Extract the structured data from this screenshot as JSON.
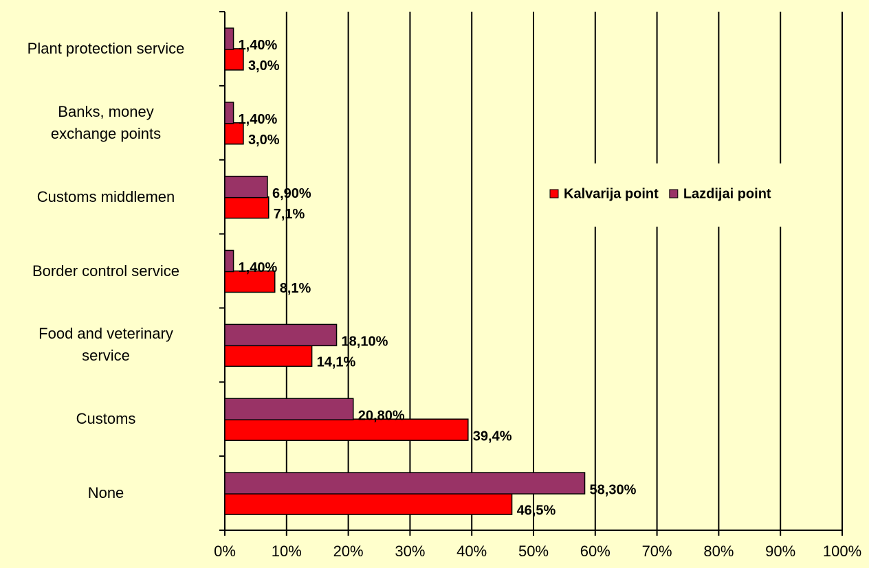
{
  "chart_data": {
    "type": "bar",
    "orientation": "horizontal",
    "categories": [
      "Plant protection service",
      "Banks, money\nexchange points",
      "Customs middlemen",
      "Border control service",
      "Food and veterinary\nservice",
      "Customs",
      "None"
    ],
    "series": [
      {
        "name": "Kalvarija point",
        "color": "#ff0000",
        "values": [
          3.0,
          3.0,
          7.1,
          8.1,
          14.1,
          39.4,
          46.5
        ],
        "value_labels": [
          "3,0%",
          "3,0%",
          "7,1%",
          "8,1%",
          "14,1%",
          "39,4%",
          "46,5%"
        ]
      },
      {
        "name": "Lazdijai point",
        "color": "#993366",
        "values": [
          1.4,
          1.4,
          6.9,
          1.4,
          18.1,
          20.8,
          58.3
        ],
        "value_labels": [
          "1,40%",
          "1,40%",
          "6,90%",
          "1,40%",
          "18,10%",
          "20,80%",
          "58,30%"
        ]
      }
    ],
    "xlim": [
      0,
      100
    ],
    "xticks": [
      {
        "value": 0,
        "label": "0%"
      },
      {
        "value": 10,
        "label": "10%"
      },
      {
        "value": 20,
        "label": "20%"
      },
      {
        "value": 30,
        "label": "30%"
      },
      {
        "value": 40,
        "label": "40%"
      },
      {
        "value": 50,
        "label": "50%"
      },
      {
        "value": 60,
        "label": "60%"
      },
      {
        "value": 70,
        "label": "70%"
      },
      {
        "value": 80,
        "label": "80%"
      },
      {
        "value": 90,
        "label": "90%"
      },
      {
        "value": 100,
        "label": "100%"
      }
    ],
    "grid": true,
    "legend": "right"
  }
}
